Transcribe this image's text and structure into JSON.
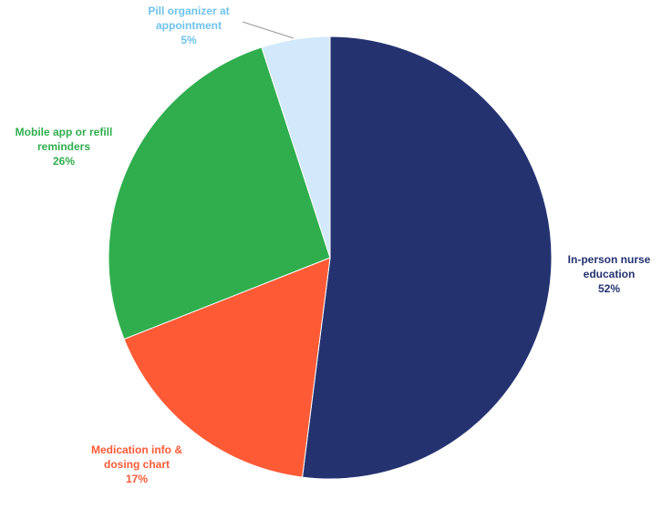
{
  "chart_data": {
    "type": "pie",
    "categories": [
      "In-person nurse education",
      "Medication info & dosing chart",
      "Mobile app or refill reminders",
      "Pill organizer at appointment"
    ],
    "values": [
      52,
      17,
      26,
      5
    ],
    "value_labels": [
      "52%",
      "17%",
      "26%",
      "5%"
    ],
    "colors": [
      "#243370",
      "#ff5a36",
      "#30ae4e",
      "#d2e9fb"
    ]
  }
}
